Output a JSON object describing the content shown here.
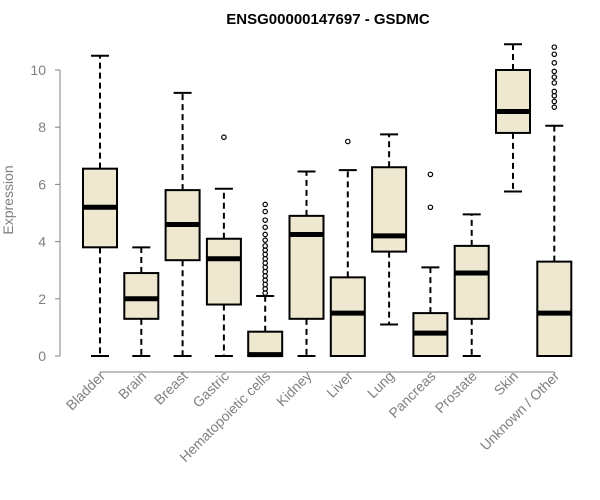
{
  "chart_data": {
    "type": "box",
    "title": "ENSG00000147697 - GSDMC",
    "xlabel": "",
    "ylabel": "Expression",
    "ylim": [
      0,
      10.5
    ],
    "yticks": [
      0,
      2,
      4,
      6,
      8,
      10
    ],
    "grid": false,
    "colors": {
      "box_fill": "#EEE8D0",
      "line": "#000000",
      "axis": "#808080"
    },
    "categories": [
      "Bladder",
      "Brain",
      "Breast",
      "Gastric",
      "Hematopoietic cells",
      "Kidney",
      "Liver",
      "Lung",
      "Pancreas",
      "Prostate",
      "Skin",
      "Unknown / Other"
    ],
    "boxes": [
      {
        "name": "Bladder",
        "min": 0,
        "q1": 3.8,
        "median": 5.2,
        "q3": 6.55,
        "max": 10.5,
        "outliers": []
      },
      {
        "name": "Brain",
        "min": 0,
        "q1": 1.3,
        "median": 2.0,
        "q3": 2.9,
        "max": 3.8,
        "outliers": []
      },
      {
        "name": "Breast",
        "min": 0,
        "q1": 3.35,
        "median": 4.6,
        "q3": 5.8,
        "max": 9.2,
        "outliers": []
      },
      {
        "name": "Gastric",
        "min": 0,
        "q1": 1.8,
        "median": 3.4,
        "q3": 4.1,
        "max": 5.85,
        "outliers": [
          7.65
        ]
      },
      {
        "name": "Hematopoietic cells",
        "min": 0,
        "q1": 0,
        "median": 0.05,
        "q3": 0.85,
        "max": 2.1,
        "outliers": [
          2.2,
          2.35,
          2.5,
          2.65,
          2.8,
          2.95,
          3.1,
          3.25,
          3.4,
          3.55,
          3.7,
          3.85,
          4.05,
          4.25,
          4.5,
          4.75,
          5.05,
          5.3
        ]
      },
      {
        "name": "Kidney",
        "min": 0,
        "q1": 1.3,
        "median": 4.25,
        "q3": 4.9,
        "max": 6.45,
        "outliers": []
      },
      {
        "name": "Liver",
        "min": 0,
        "q1": 0,
        "median": 1.5,
        "q3": 2.75,
        "max": 6.5,
        "outliers": [
          7.5
        ]
      },
      {
        "name": "Lung",
        "min": 1.1,
        "q1": 3.65,
        "median": 4.2,
        "q3": 6.6,
        "max": 7.75,
        "outliers": []
      },
      {
        "name": "Pancreas",
        "min": 0,
        "q1": 0,
        "median": 0.8,
        "q3": 1.5,
        "max": 3.1,
        "outliers": [
          5.2,
          6.35
        ]
      },
      {
        "name": "Prostate",
        "min": 0,
        "q1": 1.3,
        "median": 2.9,
        "q3": 3.85,
        "max": 4.95,
        "outliers": []
      },
      {
        "name": "Skin",
        "min": 5.75,
        "q1": 7.8,
        "median": 8.55,
        "q3": 10.0,
        "max": 10.9,
        "outliers": []
      },
      {
        "name": "Unknown / Other",
        "min": 0,
        "q1": 0,
        "median": 1.5,
        "q3": 3.3,
        "max": 8.05,
        "outliers": [
          8.7,
          8.9,
          9.1,
          9.25,
          9.55,
          9.75,
          9.95,
          10.25,
          10.55,
          10.8
        ]
      }
    ]
  }
}
